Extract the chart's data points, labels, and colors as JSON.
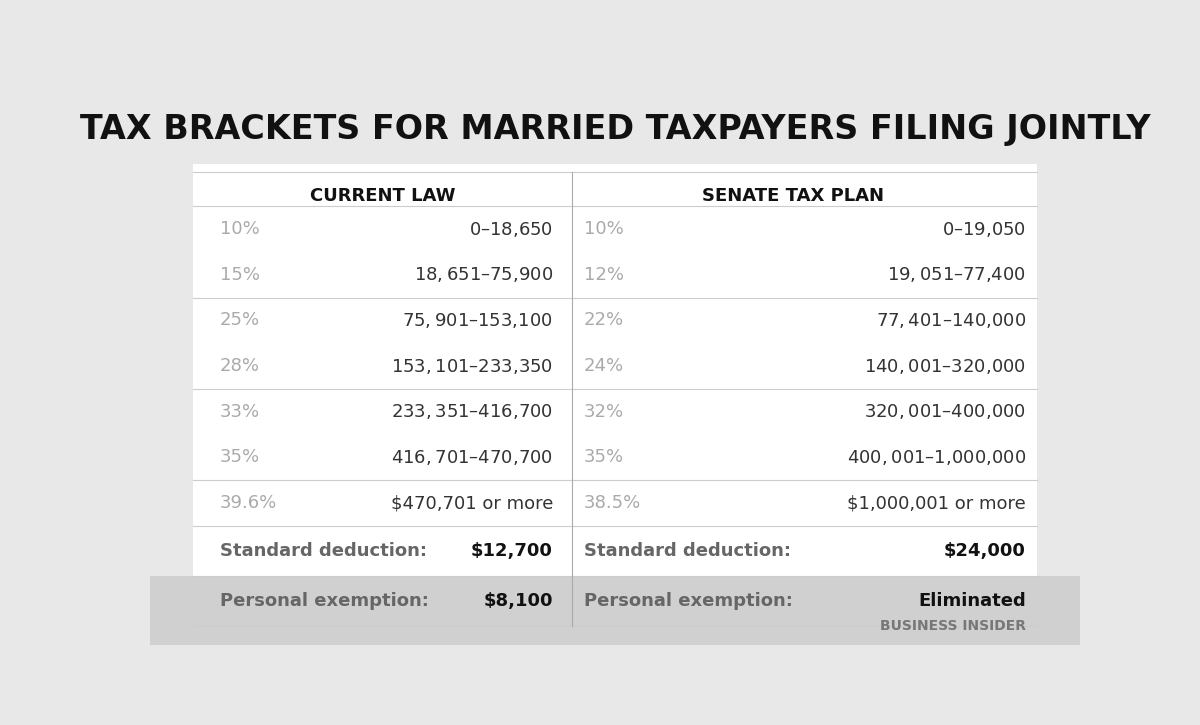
{
  "title": "TAX BRACKETS FOR MARRIED TAXPAYERS FILING JOINTLY",
  "bg_outer": "#e8e8e8",
  "bg_table": "#ffffff",
  "bg_footer": "#d8d8d8",
  "col_header_left": "CURRENT LAW",
  "col_header_right": "SENATE TAX PLAN",
  "current_law_rates": [
    "10%",
    "15%",
    "25%",
    "28%",
    "33%",
    "35%",
    "39.6%"
  ],
  "current_law_ranges": [
    "$0 – $18,650",
    "$18,651 – $75,900",
    "$75,901 – $153,100",
    "$153,101 – $233,350",
    "$233,351 – $416,700",
    "$416,701 – $470,700",
    "$470,701 or more"
  ],
  "senate_rates": [
    "10%",
    "12%",
    "22%",
    "24%",
    "32%",
    "35%",
    "38.5%"
  ],
  "senate_ranges": [
    "$0 – $19,050",
    "$19,051 – $77,400",
    "$77,401 – $140,000",
    "$140,001 – $320,000",
    "$320,001 – $400,000",
    "$400,001 – $1,000,000",
    "$1,000,001 or more"
  ],
  "current_deduction_label": "Standard deduction:",
  "current_deduction_value": "$12,700",
  "current_exemption_label": "Personal exemption:",
  "current_exemption_value": "$8,100",
  "senate_deduction_label": "Standard deduction:",
  "senate_deduction_value": "$24,000",
  "senate_exemption_label": "Personal exemption:",
  "senate_exemption_value": "Eliminated",
  "watermark": "BUSINESS INSIDER",
  "rate_color": "#aaaaaa",
  "range_color": "#333333",
  "header_color": "#111111",
  "deduction_label_color": "#666666",
  "deduction_value_color": "#111111",
  "divider_color": "#cccccc",
  "mid_divider_color": "#aaaaaa",
  "title_fontsize": 24,
  "header_fontsize": 13,
  "rate_fontsize": 13,
  "range_fontsize": 13,
  "deduction_fontsize": 13,
  "watermark_fontsize": 10
}
